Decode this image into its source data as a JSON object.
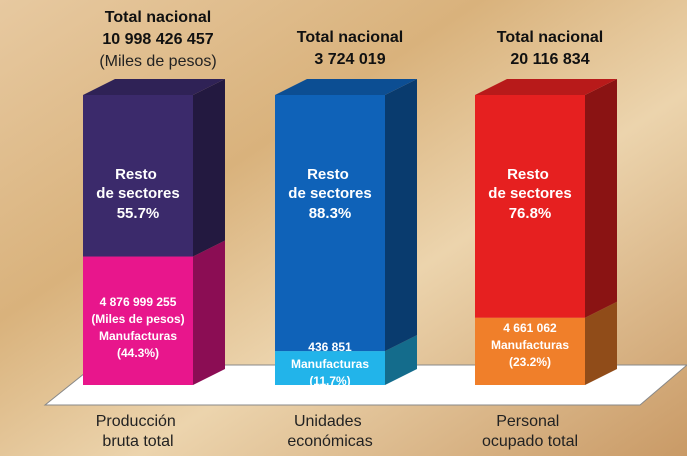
{
  "chart_data": {
    "type": "bar",
    "stacked": true,
    "ylim": [
      0,
      100
    ],
    "categories": [
      "Producción bruta total",
      "Unidades económicas",
      "Personal ocupado total"
    ],
    "totals": [
      {
        "heading": "Total nacional",
        "value": 10998426457,
        "label": "10 998 426 457",
        "unit": "(Miles de pesos)"
      },
      {
        "heading": "Total nacional",
        "value": 3724019,
        "label": "3 724 019"
      },
      {
        "heading": "Total nacional",
        "value": 20116834,
        "label": "20 116 834"
      }
    ],
    "series": [
      {
        "name": "Manufacturas",
        "values": [
          44.3,
          11.7,
          23.2
        ],
        "value_labels": [
          "(44.3%)",
          "(11.7%)",
          "(23.2%)"
        ],
        "amounts": [
          {
            "value": 4876999255,
            "label": "4 876 999 255"
          },
          {
            "value": 436851,
            "label": "436 851"
          },
          {
            "value": 4661062,
            "label": "4 661 062"
          }
        ],
        "colors": [
          "#e8168c",
          "#22b4ea",
          "#f07f2a"
        ]
      },
      {
        "name": "Resto de sectores",
        "values": [
          55.7,
          88.3,
          76.8
        ],
        "value_labels": [
          "55.7%",
          "88.3%",
          "76.8%"
        ],
        "colors": [
          "#3b2a6b",
          "#0f62b8",
          "#e62020"
        ]
      }
    ]
  }
}
